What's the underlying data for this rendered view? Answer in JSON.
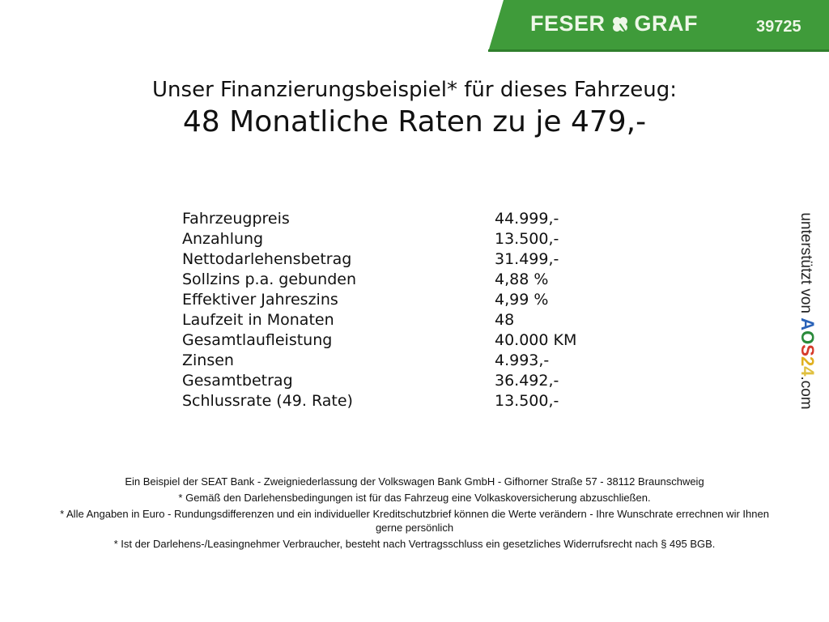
{
  "header": {
    "logo_text": "FESER GRAF",
    "logo_left": "FESER",
    "logo_right": "GRAF",
    "listing_code": "39725",
    "brand_color": "#3f9b3a",
    "logo_icon": "clover-icon"
  },
  "title": {
    "line1": "Unser Finanzierungsbeispiel* für dieses Fahrzeug:",
    "line2": "48 Monatliche Raten zu je 479,-"
  },
  "rows": [
    {
      "label": "Fahrzeugpreis",
      "value": "44.999,-"
    },
    {
      "label": "Anzahlung",
      "value": "13.500,-"
    },
    {
      "label": "Nettodarlehensbetrag",
      "value": "31.499,-"
    },
    {
      "label": "Sollzins p.a. gebunden",
      "value": "4,88 %"
    },
    {
      "label": "Effektiver Jahreszins",
      "value": "4,99 %"
    },
    {
      "label": "Laufzeit in Monaten",
      "value": "48"
    },
    {
      "label": "Gesamtlaufleistung",
      "value": "40.000 KM"
    },
    {
      "label": "Zinsen",
      "value": "4.993,-"
    },
    {
      "label": "Gesamtbetrag",
      "value": "36.492,-"
    },
    {
      "label": "Schlussrate (49. Rate)",
      "value": "13.500,-"
    }
  ],
  "side": {
    "prefix": "unterstützt von",
    "brand": "AOS24",
    "suffix": ".com"
  },
  "footer": [
    "Ein Beispiel der SEAT Bank - Zweigniederlassung der Volkswagen Bank GmbH - Gifhorner Straße 57 - 38112 Braunschweig",
    "* Gemäß den Darlehensbedingungen ist für das Fahrzeug eine Volkaskoversicherung abzuschließen.",
    "* Alle Angaben in Euro - Rundungsdifferenzen und ein individueller Kreditschutzbrief können die Werte verändern - Ihre Wunschrate errechnen wir Ihnen gerne persönlich",
    "* Ist der Darlehens-/Leasingnehmer Verbraucher, besteht nach Vertragsschluss ein gesetzliches Widerrufsrecht nach § 495 BGB."
  ]
}
